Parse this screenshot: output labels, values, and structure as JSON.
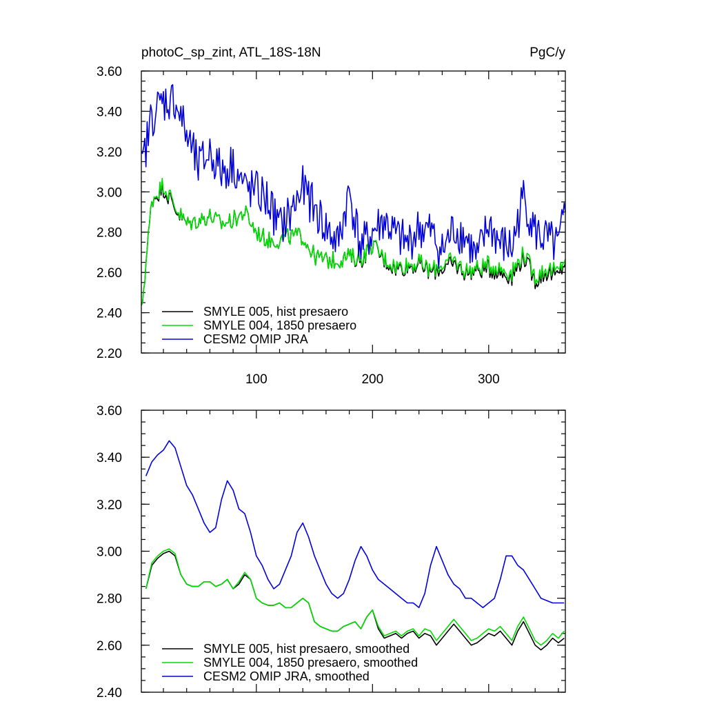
{
  "chart_data": [
    {
      "type": "line",
      "title_left": "photoC_sp_zint, ATL_18S-18N",
      "title_right": "PgC/y",
      "xlabel": "",
      "ylabel": "",
      "xlim": [
        1,
        366
      ],
      "ylim": [
        2.2,
        3.6
      ],
      "x_ticks": [
        100,
        200,
        300
      ],
      "x_tick_labels": [
        "100",
        "200",
        "300"
      ],
      "y_ticks": [
        2.2,
        2.4,
        2.6,
        2.8,
        3.0,
        3.2,
        3.4,
        3.6
      ],
      "y_tick_labels": [
        "2.20",
        "2.40",
        "2.60",
        "2.80",
        "3.00",
        "3.20",
        "3.40",
        "3.60"
      ],
      "legend_position": "bottom-left",
      "x": [
        1,
        10,
        20,
        30,
        40,
        50,
        60,
        70,
        80,
        90,
        100,
        110,
        120,
        130,
        140,
        150,
        160,
        170,
        180,
        190,
        200,
        210,
        220,
        230,
        240,
        250,
        260,
        270,
        280,
        290,
        300,
        310,
        320,
        330,
        340,
        350,
        360,
        366
      ],
      "series": [
        {
          "name": "SMYLE 005, hist presaero",
          "color": "#000000",
          "values": [
            2.4,
            2.96,
            3.02,
            2.92,
            2.84,
            2.86,
            2.88,
            2.84,
            2.86,
            2.9,
            2.8,
            2.76,
            2.76,
            2.78,
            2.78,
            2.68,
            2.66,
            2.66,
            2.68,
            2.66,
            2.74,
            2.66,
            2.62,
            2.63,
            2.64,
            2.6,
            2.62,
            2.64,
            2.6,
            2.61,
            2.62,
            2.6,
            2.58,
            2.68,
            2.56,
            2.6,
            2.58,
            2.66
          ]
        },
        {
          "name": "SMYLE 004, 1850 presaero",
          "color": "#00dd00",
          "values": [
            2.4,
            2.96,
            3.04,
            2.93,
            2.84,
            2.86,
            2.88,
            2.84,
            2.86,
            2.9,
            2.8,
            2.76,
            2.76,
            2.78,
            2.78,
            2.68,
            2.66,
            2.66,
            2.68,
            2.67,
            2.74,
            2.67,
            2.63,
            2.64,
            2.65,
            2.61,
            2.64,
            2.66,
            2.61,
            2.62,
            2.64,
            2.62,
            2.6,
            2.7,
            2.58,
            2.62,
            2.6,
            2.68
          ]
        },
        {
          "name": "CESM2 OMIP JRA",
          "color": "#0000dd",
          "values": [
            3.1,
            3.38,
            3.45,
            3.46,
            3.28,
            3.12,
            3.2,
            3.1,
            3.14,
            3.02,
            3.0,
            2.96,
            2.82,
            2.9,
            3.02,
            2.92,
            2.82,
            2.74,
            3.0,
            2.72,
            2.8,
            2.86,
            2.78,
            2.74,
            2.82,
            2.8,
            2.7,
            2.82,
            2.78,
            2.66,
            2.84,
            2.74,
            2.72,
            2.98,
            2.8,
            2.76,
            2.72,
            2.9
          ]
        }
      ]
    },
    {
      "type": "line",
      "title_left": "",
      "title_right": "",
      "xlabel": "",
      "ylabel": "",
      "xlim": [
        1,
        366
      ],
      "ylim": [
        2.4,
        3.6
      ],
      "x_ticks": [
        100,
        200,
        300
      ],
      "x_tick_labels": [],
      "y_ticks": [
        2.4,
        2.6,
        2.8,
        3.0,
        3.2,
        3.4,
        3.6
      ],
      "y_tick_labels": [
        "2.40",
        "2.60",
        "2.80",
        "3.00",
        "3.20",
        "3.40",
        "3.60"
      ],
      "legend_position": "bottom-left",
      "x": [
        5,
        10,
        15,
        20,
        25,
        30,
        35,
        40,
        45,
        50,
        55,
        60,
        65,
        70,
        75,
        80,
        85,
        90,
        95,
        100,
        105,
        110,
        115,
        120,
        125,
        130,
        135,
        140,
        145,
        150,
        155,
        160,
        165,
        170,
        175,
        180,
        185,
        190,
        195,
        200,
        205,
        210,
        215,
        220,
        225,
        230,
        235,
        240,
        245,
        250,
        255,
        260,
        265,
        270,
        275,
        280,
        285,
        290,
        295,
        300,
        305,
        310,
        315,
        320,
        325,
        330,
        335,
        340,
        345,
        350,
        355,
        360,
        365
      ],
      "series": [
        {
          "name": "SMYLE 005, hist presaero, smoothed",
          "color": "#000000",
          "values": [
            2.84,
            2.94,
            2.97,
            2.99,
            3.0,
            2.98,
            2.9,
            2.86,
            2.85,
            2.85,
            2.87,
            2.87,
            2.85,
            2.86,
            2.88,
            2.84,
            2.86,
            2.9,
            2.88,
            2.8,
            2.78,
            2.77,
            2.77,
            2.78,
            2.76,
            2.76,
            2.78,
            2.8,
            2.78,
            2.7,
            2.68,
            2.67,
            2.66,
            2.66,
            2.68,
            2.69,
            2.7,
            2.67,
            2.72,
            2.75,
            2.67,
            2.63,
            2.64,
            2.65,
            2.63,
            2.65,
            2.66,
            2.63,
            2.65,
            2.64,
            2.6,
            2.63,
            2.66,
            2.69,
            2.66,
            2.63,
            2.6,
            2.61,
            2.63,
            2.65,
            2.64,
            2.66,
            2.63,
            2.6,
            2.66,
            2.7,
            2.65,
            2.6,
            2.58,
            2.6,
            2.63,
            2.61,
            2.63
          ]
        },
        {
          "name": "SMYLE 004, 1850 presaero, smoothed",
          "color": "#00dd00",
          "values": [
            2.84,
            2.95,
            2.98,
            3.0,
            3.01,
            2.99,
            2.9,
            2.86,
            2.85,
            2.85,
            2.87,
            2.87,
            2.85,
            2.86,
            2.88,
            2.84,
            2.87,
            2.91,
            2.88,
            2.8,
            2.78,
            2.77,
            2.77,
            2.78,
            2.76,
            2.76,
            2.78,
            2.8,
            2.78,
            2.7,
            2.68,
            2.67,
            2.66,
            2.66,
            2.68,
            2.69,
            2.7,
            2.67,
            2.72,
            2.75,
            2.68,
            2.64,
            2.65,
            2.66,
            2.64,
            2.66,
            2.67,
            2.64,
            2.67,
            2.66,
            2.62,
            2.65,
            2.68,
            2.71,
            2.68,
            2.65,
            2.62,
            2.63,
            2.65,
            2.67,
            2.66,
            2.68,
            2.65,
            2.62,
            2.68,
            2.72,
            2.67,
            2.62,
            2.6,
            2.62,
            2.65,
            2.63,
            2.66
          ]
        },
        {
          "name": "CESM2 OMIP JRA, smoothed",
          "color": "#0000dd",
          "values": [
            3.32,
            3.38,
            3.41,
            3.43,
            3.47,
            3.44,
            3.36,
            3.28,
            3.24,
            3.18,
            3.12,
            3.08,
            3.1,
            3.22,
            3.3,
            3.26,
            3.18,
            3.16,
            3.08,
            2.98,
            2.94,
            2.88,
            2.84,
            2.86,
            2.92,
            2.98,
            3.08,
            3.12,
            3.06,
            2.98,
            2.92,
            2.86,
            2.82,
            2.8,
            2.82,
            2.88,
            2.96,
            3.02,
            2.98,
            2.92,
            2.88,
            2.86,
            2.84,
            2.82,
            2.8,
            2.78,
            2.78,
            2.76,
            2.82,
            2.94,
            3.02,
            2.96,
            2.9,
            2.86,
            2.84,
            2.8,
            2.8,
            2.78,
            2.76,
            2.78,
            2.8,
            2.88,
            2.98,
            2.98,
            2.94,
            2.92,
            2.88,
            2.84,
            2.8,
            2.79,
            2.78,
            2.78,
            2.78
          ]
        }
      ]
    }
  ]
}
